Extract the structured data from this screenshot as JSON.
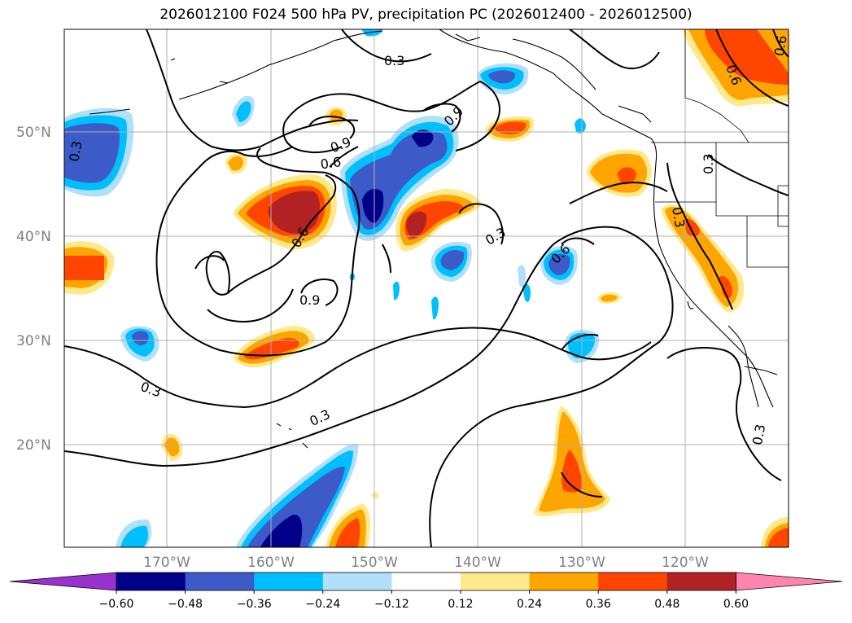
{
  "title": "2026012100 F024 500 hPa PV, precipitation PC (2026012400 - 2026012500)",
  "map": {
    "lat_labels": [
      "50°N",
      "40°N",
      "30°N",
      "20°N"
    ],
    "lon_labels": [
      "170°W",
      "160°W",
      "150°W",
      "140°W",
      "130°W",
      "120°W"
    ],
    "contour_labels": [
      "0.3",
      "0.9",
      "0.9",
      "0.6",
      "0.6",
      "0.3",
      "0.6",
      "0.9",
      "0.3",
      "0.3",
      "0.6",
      "0.3",
      "0.3",
      "0.6",
      "0.3",
      "0.3"
    ],
    "colors": {
      "contour": "#000000",
      "coast": "#000000",
      "grid": "#b0b0b0"
    }
  },
  "colorbar": {
    "ticks": [
      "−0.60",
      "−0.48",
      "−0.36",
      "−0.24",
      "−0.12",
      "0.12",
      "0.24",
      "0.36",
      "0.48",
      "0.60"
    ],
    "colors": [
      "#9932cc",
      "#00008b",
      "#3c5ac8",
      "#00bfff",
      "#b0e0fa",
      "#ffffff",
      "#ffe98a",
      "#ffa500",
      "#ff4500",
      "#b22222",
      "#ff85b0"
    ]
  }
}
